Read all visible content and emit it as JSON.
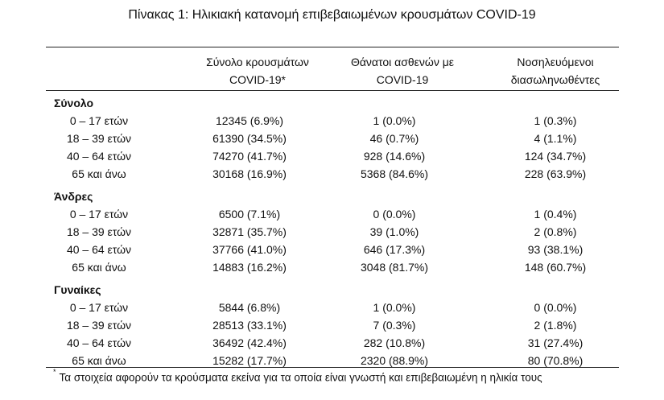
{
  "title": "Πίνακας 1: Ηλικιακή κατανομή επιβεβαιωμένων κρουσμάτων COVID-19",
  "headers": {
    "col1_line1": "Σύνολο κρουσμάτων",
    "col1_line2": "COVID-19*",
    "col2_line1": "Θάνατοι ασθενών με",
    "col2_line2": "COVID-19",
    "col3_line1": "Νοσηλευόμενοι",
    "col3_line2": "διασωληνωθέντες"
  },
  "groups": [
    {
      "name": "Σύνολο",
      "rows": [
        {
          "label": "0 – 17 ετών",
          "cases": "12345 (6.9%)",
          "deaths": "1 (0.0%)",
          "intubated": "1 (0.3%)"
        },
        {
          "label": "18 – 39 ετών",
          "cases": "61390 (34.5%)",
          "deaths": "46 (0.7%)",
          "intubated": "4 (1.1%)"
        },
        {
          "label": "40 – 64 ετών",
          "cases": "74270 (41.7%)",
          "deaths": "928 (14.6%)",
          "intubated": "124 (34.7%)"
        },
        {
          "label": "65 και άνω",
          "cases": "30168 (16.9%)",
          "deaths": "5368 (84.6%)",
          "intubated": "228 (63.9%)"
        }
      ]
    },
    {
      "name": "Άνδρες",
      "rows": [
        {
          "label": "0 – 17 ετών",
          "cases": "6500 (7.1%)",
          "deaths": "0 (0.0%)",
          "intubated": "1 (0.4%)"
        },
        {
          "label": "18 – 39 ετών",
          "cases": "32871 (35.7%)",
          "deaths": "39 (1.0%)",
          "intubated": "2 (0.8%)"
        },
        {
          "label": "40 – 64 ετών",
          "cases": "37766 (41.0%)",
          "deaths": "646 (17.3%)",
          "intubated": "93 (38.1%)"
        },
        {
          "label": "65 και άνω",
          "cases": "14883 (16.2%)",
          "deaths": "3048 (81.7%)",
          "intubated": "148 (60.7%)"
        }
      ]
    },
    {
      "name": "Γυναίκες",
      "rows": [
        {
          "label": "0 – 17 ετών",
          "cases": "5844 (6.8%)",
          "deaths": "1 (0.0%)",
          "intubated": "0 (0.0%)"
        },
        {
          "label": "18 – 39 ετών",
          "cases": "28513 (33.1%)",
          "deaths": "7 (0.3%)",
          "intubated": "2 (1.8%)"
        },
        {
          "label": "40 – 64 ετών",
          "cases": "36492 (42.4%)",
          "deaths": "282 (10.8%)",
          "intubated": "31 (27.4%)"
        },
        {
          "label": "65 και άνω",
          "cases": "15282 (17.7%)",
          "deaths": "2320 (88.9%)",
          "intubated": "80 (70.8%)"
        }
      ]
    }
  ],
  "footnote": {
    "marker": "*",
    "text": "Τα στοιχεία αφορούν τα κρούσματα εκείνα για τα οποία είναι γνωστή και επιβεβαιωμένη η ηλικία τους"
  }
}
